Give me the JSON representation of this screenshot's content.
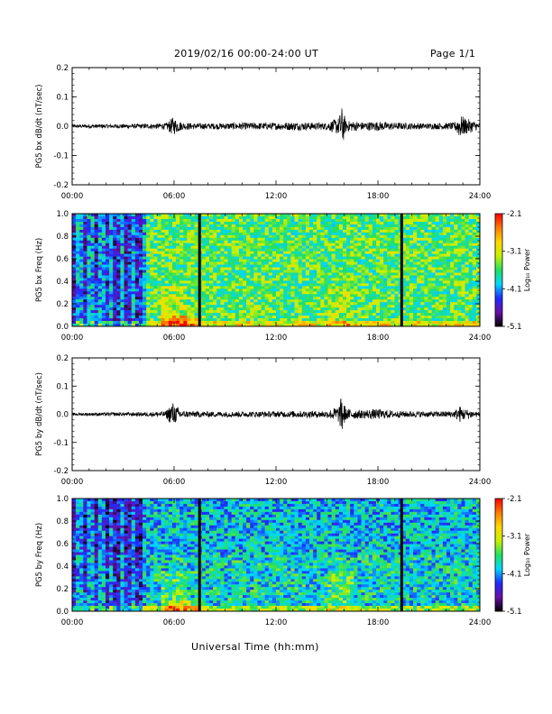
{
  "header": {
    "title": "2019/02/16  00:00-24:00 UT",
    "page": "Page 1/1"
  },
  "footer": {
    "xlabel": "Universal Time (hh:mm)"
  },
  "colors": {
    "colormap": [
      "#000000",
      "#6a0fa8",
      "#1e2cff",
      "#00d8ff",
      "#22e060",
      "#c8f000",
      "#ffd800",
      "#ff7a00",
      "#ff0000"
    ],
    "dropout_lines": "#000000"
  },
  "chart_data": [
    {
      "type": "line",
      "ylabel": "PG5 bx dB/dt (nT/sec)",
      "x_ticks": [
        "00:00",
        "06:00",
        "12:00",
        "18:00",
        "24:00"
      ],
      "xlim": [
        0,
        24
      ],
      "ylim": [
        -0.2,
        0.2
      ],
      "y_ticks": [
        "0.2",
        "0.1",
        "0.0",
        "-0.1",
        "-0.2"
      ],
      "series": [
        {
          "x": [
            0,
            2,
            4,
            5.5,
            5.9,
            6.1,
            6.5,
            8,
            10,
            12,
            13,
            15,
            15.7,
            15.9,
            16.1,
            17,
            18,
            19,
            21,
            22.5,
            22.8,
            23.1,
            24
          ],
          "y_envelope": [
            0.006,
            0.007,
            0.008,
            0.01,
            0.03,
            0.025,
            0.012,
            0.01,
            0.012,
            0.012,
            0.014,
            0.012,
            0.03,
            0.07,
            0.02,
            0.014,
            0.016,
            0.012,
            0.01,
            0.012,
            0.04,
            0.03,
            0.01
          ]
        }
      ]
    },
    {
      "type": "heatmap",
      "ylabel": "PG5 bx Freq (Hz)",
      "x_ticks": [
        "00:00",
        "06:00",
        "12:00",
        "18:00",
        "24:00"
      ],
      "y_ticks": [
        "1.0",
        "0.8",
        "0.6",
        "0.4",
        "0.2",
        "0.0"
      ],
      "xlim": [
        0,
        24
      ],
      "ylim": [
        0,
        1
      ],
      "colorbar": {
        "label": "Log₁₀ Power",
        "ticks": [
          "-2.1",
          "-3.1",
          "-4.1",
          "-5.1"
        ],
        "range": [
          -5.1,
          -2.1
        ]
      },
      "gap_lines_ut": [
        7.5,
        19.4
      ],
      "activity_bursts_ut": [
        6.0,
        15.8
      ]
    },
    {
      "type": "line",
      "ylabel": "PG5 by dB/dt (nT/sec)",
      "x_ticks": [
        "00:00",
        "06:00",
        "12:00",
        "18:00",
        "24:00"
      ],
      "xlim": [
        0,
        24
      ],
      "ylim": [
        -0.2,
        0.2
      ],
      "y_ticks": [
        "0.2",
        "0.1",
        "0.0",
        "-0.1",
        "-0.2"
      ],
      "series": [
        {
          "x": [
            0,
            2,
            4,
            5.5,
            5.9,
            6.1,
            6.5,
            8,
            10,
            12,
            13,
            15,
            15.7,
            15.9,
            16.1,
            17,
            18,
            19,
            21,
            22.5,
            22.8,
            23.1,
            24
          ],
          "y_envelope": [
            0.005,
            0.006,
            0.007,
            0.01,
            0.045,
            0.03,
            0.012,
            0.01,
            0.01,
            0.01,
            0.012,
            0.012,
            0.03,
            0.075,
            0.02,
            0.015,
            0.018,
            0.012,
            0.01,
            0.012,
            0.03,
            0.02,
            0.008
          ]
        }
      ]
    },
    {
      "type": "heatmap",
      "ylabel": "PG5 by Freq (Hz)",
      "x_ticks": [
        "00:00",
        "06:00",
        "12:00",
        "18:00",
        "24:00"
      ],
      "y_ticks": [
        "1.0",
        "0.8",
        "0.6",
        "0.4",
        "0.2",
        "0.0"
      ],
      "xlim": [
        0,
        24
      ],
      "ylim": [
        0,
        1
      ],
      "colorbar": {
        "label": "Log₁₀ Power",
        "ticks": [
          "-2.1",
          "-3.1",
          "-4.1",
          "-5.1"
        ],
        "range": [
          -5.1,
          -2.1
        ]
      },
      "gap_lines_ut": [
        7.5,
        19.4
      ],
      "activity_bursts_ut": [
        6.0,
        15.8
      ]
    }
  ]
}
